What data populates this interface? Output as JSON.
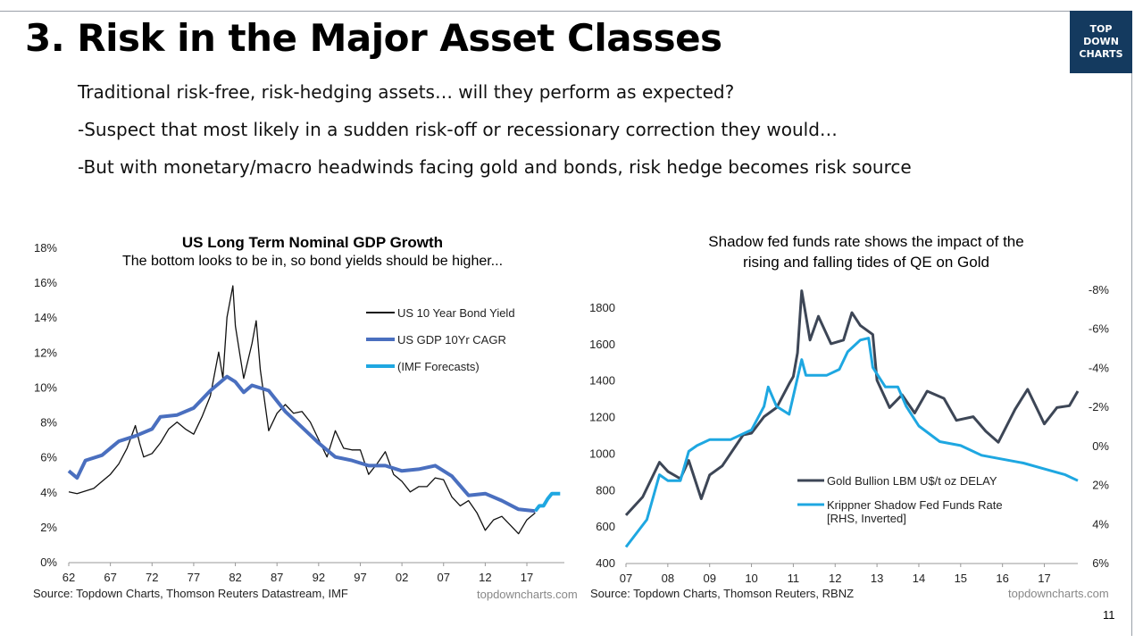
{
  "slide": {
    "title": "3. Risk in the Major Asset Classes",
    "logo_text": [
      "TOP",
      "DOWN",
      "CHARTS"
    ],
    "bullets": [
      "Traditional risk-free, risk-hedging assets… will they perform as expected?",
      "-Suspect that most likely in a sudden risk-off or recessionary correction they would…",
      "-But with monetary/macro headwinds facing gold and bonds, risk hedge becomes risk source"
    ],
    "page_number": "11"
  },
  "chart_data": [
    {
      "type": "line",
      "title": "US Long Term Nominal GDP Growth",
      "subtitle": "The bottom looks to be in, so bond yields should be higher...",
      "source": "Source: Topdown Charts, Thomson Reuters Datastream, IMF",
      "watermark": "topdowncharts.com",
      "x_tick_labels": [
        "62",
        "67",
        "72",
        "77",
        "82",
        "87",
        "92",
        "97",
        "02",
        "07",
        "12",
        "17"
      ],
      "x_ticks": [
        1962,
        1967,
        1972,
        1977,
        1982,
        1987,
        1992,
        1997,
        2002,
        2007,
        2012,
        2017
      ],
      "xlim": [
        1962,
        2021.5
      ],
      "y_tick_labels": [
        "0%",
        "2%",
        "4%",
        "6%",
        "8%",
        "10%",
        "12%",
        "14%",
        "16%",
        "18%"
      ],
      "ylim": [
        0,
        18
      ],
      "grid": false,
      "legend": "top-right",
      "series": [
        {
          "name": "US 10 Year Bond Yield",
          "color": "#111111",
          "x": [
            1962,
            1963,
            1965,
            1966,
            1967,
            1968,
            1969,
            1970,
            1970.5,
            1971,
            1972,
            1973,
            1974,
            1975,
            1976,
            1977,
            1978,
            1979,
            1980,
            1980.5,
            1981,
            1981.7,
            1982,
            1982.5,
            1983,
            1984,
            1984.5,
            1985,
            1986,
            1987,
            1988,
            1989,
            1990,
            1991,
            1992,
            1993,
            1994,
            1995,
            1996,
            1997,
            1998,
            1999,
            2000,
            2001,
            2002,
            2003,
            2004,
            2005,
            2006,
            2007,
            2008,
            2009,
            2010,
            2011,
            2012,
            2013,
            2014,
            2015,
            2016,
            2017,
            2018
          ],
          "values": [
            4.0,
            3.9,
            4.2,
            4.6,
            5.0,
            5.6,
            6.5,
            7.8,
            6.8,
            6.0,
            6.2,
            6.8,
            7.6,
            8.0,
            7.6,
            7.3,
            8.3,
            9.5,
            12.0,
            10.5,
            14.0,
            15.8,
            13.5,
            12.0,
            10.5,
            12.5,
            13.8,
            11.0,
            7.5,
            8.5,
            9.0,
            8.5,
            8.6,
            8.0,
            7.0,
            6.0,
            7.5,
            6.5,
            6.4,
            6.4,
            5.0,
            5.6,
            6.3,
            5.0,
            4.6,
            4.0,
            4.3,
            4.3,
            4.8,
            4.7,
            3.7,
            3.2,
            3.5,
            2.8,
            1.8,
            2.4,
            2.6,
            2.1,
            1.6,
            2.4,
            2.8
          ]
        },
        {
          "name": "US GDP 10Yr CAGR",
          "color": "#4a6fbf",
          "x": [
            1962,
            1963,
            1964,
            1966,
            1968,
            1970,
            1972,
            1973,
            1975,
            1977,
            1979,
            1981,
            1982,
            1983,
            1984,
            1986,
            1988,
            1990,
            1992,
            1994,
            1996,
            1998,
            2000,
            2002,
            2004,
            2006,
            2008,
            2010,
            2012,
            2014,
            2016,
            2018
          ],
          "values": [
            5.2,
            4.8,
            5.8,
            6.1,
            6.9,
            7.2,
            7.6,
            8.3,
            8.4,
            8.8,
            9.8,
            10.6,
            10.3,
            9.7,
            10.1,
            9.8,
            8.6,
            7.7,
            6.8,
            6.0,
            5.8,
            5.5,
            5.5,
            5.2,
            5.3,
            5.5,
            4.9,
            3.8,
            3.9,
            3.5,
            3.0,
            2.9
          ]
        },
        {
          "name": "(IMF Forecasts)",
          "color": "#1ea7e1",
          "x": [
            2018,
            2018.5,
            2019,
            2019.5,
            2020,
            2021
          ],
          "values": [
            2.9,
            3.2,
            3.2,
            3.6,
            3.9,
            3.9
          ]
        }
      ]
    },
    {
      "type": "line",
      "title": "Shadow fed funds rate shows the impact of the rising and falling tides of QE on Gold",
      "title_lines": [
        "Shadow fed funds rate shows the impact of the",
        "rising and falling tides of QE on Gold"
      ],
      "source": "Source: Topdown Charts, Thomson Reuters, RBNZ",
      "watermark": "topdowncharts.com",
      "x_tick_labels": [
        "07",
        "08",
        "09",
        "10",
        "11",
        "12",
        "13",
        "14",
        "15",
        "16",
        "17"
      ],
      "x_ticks": [
        2007,
        2008,
        2009,
        2010,
        2011,
        2012,
        2013,
        2014,
        2015,
        2016,
        2017
      ],
      "xlim": [
        2007,
        2017.8
      ],
      "y_tick_labels": [
        "400",
        "600",
        "800",
        "1000",
        "1200",
        "1400",
        "1600",
        "1800"
      ],
      "ylim": [
        400,
        1800
      ],
      "y2_tick_labels": [
        "6%",
        "4%",
        "2%",
        "0%",
        "-2%",
        "-4%",
        "-6%",
        "-8%"
      ],
      "y2lim": [
        6,
        -8
      ],
      "y2_inverted": true,
      "grid": false,
      "legend": "bottom-right",
      "series": [
        {
          "name": "Gold Bullion LBM U$/t oz DELAY",
          "color": "#3d4656",
          "axis": "left",
          "x": [
            2007.0,
            2007.4,
            2007.8,
            2008.0,
            2008.3,
            2008.5,
            2008.8,
            2009.0,
            2009.3,
            2009.8,
            2010.0,
            2010.3,
            2010.6,
            2010.9,
            2011.0,
            2011.1,
            2011.2,
            2011.4,
            2011.6,
            2011.9,
            2012.2,
            2012.4,
            2012.6,
            2012.9,
            2013.0,
            2013.3,
            2013.6,
            2013.9,
            2014.2,
            2014.6,
            2014.9,
            2015.3,
            2015.6,
            2015.9,
            2016.3,
            2016.6,
            2017.0,
            2017.3,
            2017.6,
            2017.8
          ],
          "values": [
            660,
            760,
            950,
            900,
            860,
            960,
            750,
            880,
            930,
            1100,
            1110,
            1200,
            1250,
            1380,
            1420,
            1550,
            1890,
            1620,
            1750,
            1600,
            1620,
            1770,
            1700,
            1650,
            1400,
            1250,
            1320,
            1220,
            1340,
            1300,
            1180,
            1200,
            1120,
            1060,
            1240,
            1350,
            1160,
            1250,
            1260,
            1340
          ]
        },
        {
          "name": "Krippner Shadow Fed Funds Rate",
          "name_line2": "[RHS, Inverted]",
          "color": "#1ea7e1",
          "axis": "right",
          "x": [
            2007.0,
            2007.5,
            2007.8,
            2008.0,
            2008.3,
            2008.5,
            2008.7,
            2009.0,
            2009.5,
            2009.8,
            2010.0,
            2010.3,
            2010.4,
            2010.6,
            2010.9,
            2011.2,
            2011.3,
            2011.8,
            2012.1,
            2012.3,
            2012.6,
            2012.8,
            2012.9,
            2013.2,
            2013.5,
            2013.7,
            2014.0,
            2014.5,
            2015.0,
            2015.5,
            2016.0,
            2016.5,
            2017.0,
            2017.5,
            2017.8
          ],
          "values": [
            5.2,
            3.8,
            1.5,
            1.8,
            1.8,
            0.3,
            0.0,
            -0.3,
            -0.3,
            -0.6,
            -0.8,
            -2.0,
            -3.0,
            -2.0,
            -1.6,
            -4.4,
            -3.6,
            -3.6,
            -3.9,
            -4.8,
            -5.4,
            -5.5,
            -4.0,
            -3.0,
            -3.0,
            -2.0,
            -1.0,
            -0.2,
            0.0,
            0.5,
            0.7,
            0.9,
            1.2,
            1.5,
            1.8
          ]
        }
      ]
    }
  ],
  "colors": {
    "logo_bg": "#143a5f",
    "gdp_blue": "#4a6fbf",
    "imf_cyan": "#1ea7e1",
    "gold_dark": "#3d4656"
  }
}
